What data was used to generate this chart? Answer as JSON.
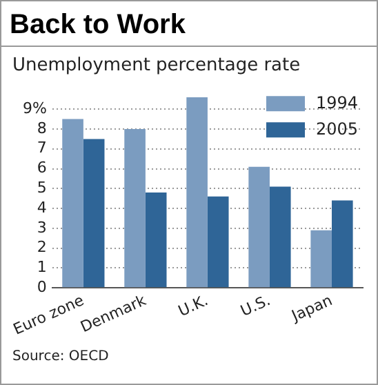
{
  "chart_data": {
    "type": "bar",
    "title": "Back to Work",
    "subtitle": "Unemployment percentage rate",
    "categories": [
      "Euro zone",
      "Denmark",
      "U.K.",
      "U.S.",
      "Japan"
    ],
    "series": [
      {
        "name": "1994",
        "color": "#7b9cc0",
        "values": [
          8.5,
          8.0,
          9.6,
          6.1,
          2.9
        ]
      },
      {
        "name": "2005",
        "color": "#2f6597",
        "values": [
          7.5,
          4.8,
          4.6,
          5.1,
          4.4
        ]
      }
    ],
    "ylim": [
      0,
      9.8
    ],
    "yticks": [
      0,
      1,
      2,
      3,
      4,
      5,
      6,
      7,
      8,
      {
        "value": 9,
        "label": "9%"
      }
    ],
    "grid": "y",
    "legend": "top right",
    "line_style": "dotted",
    "annotations": [
      "Source: OECD"
    ]
  }
}
